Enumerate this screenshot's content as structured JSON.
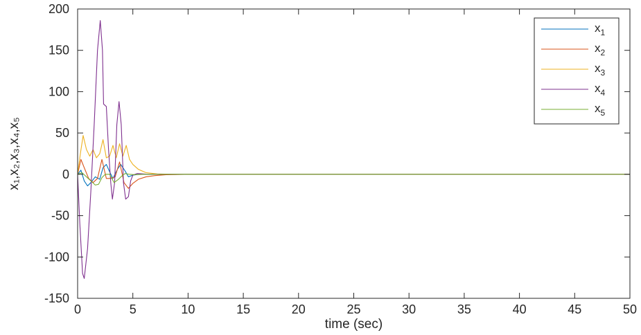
{
  "chart_data": {
    "type": "line",
    "title": "",
    "xlabel": "time (sec)",
    "ylabel": "x₁,x₂,x₃,x₄,x₅",
    "xlim": [
      0,
      50
    ],
    "ylim": [
      -150,
      200
    ],
    "xticks": [
      0,
      5,
      10,
      15,
      20,
      25,
      30,
      35,
      40,
      45,
      50
    ],
    "yticks": [
      -150,
      -100,
      -50,
      0,
      50,
      100,
      150,
      200
    ],
    "grid": false,
    "legend_position": "top-right",
    "series": [
      {
        "name": "x1",
        "base": "x",
        "sub": "1",
        "color": "#0072BD",
        "points": [
          [
            0,
            0
          ],
          [
            0.3,
            5
          ],
          [
            0.6,
            -8
          ],
          [
            0.9,
            -14
          ],
          [
            1.2,
            -10
          ],
          [
            1.6,
            -3
          ],
          [
            2.0,
            -6
          ],
          [
            2.3,
            8
          ],
          [
            2.6,
            12
          ],
          [
            2.9,
            3
          ],
          [
            3.2,
            -5
          ],
          [
            3.6,
            6
          ],
          [
            3.9,
            12
          ],
          [
            4.3,
            4
          ],
          [
            4.6,
            -3
          ],
          [
            5.0,
            -1
          ],
          [
            5.6,
            0
          ],
          [
            6.5,
            0
          ],
          [
            8,
            0
          ],
          [
            50,
            0
          ]
        ]
      },
      {
        "name": "x2",
        "base": "x",
        "sub": "2",
        "color": "#D95319",
        "points": [
          [
            0,
            0
          ],
          [
            0.3,
            18
          ],
          [
            0.6,
            8
          ],
          [
            1.0,
            -5
          ],
          [
            1.4,
            -10
          ],
          [
            1.8,
            -5
          ],
          [
            2.2,
            18
          ],
          [
            2.6,
            -5
          ],
          [
            3.0,
            -5
          ],
          [
            3.4,
            -3
          ],
          [
            3.8,
            15
          ],
          [
            4.2,
            -10
          ],
          [
            4.6,
            -17
          ],
          [
            5.0,
            -11
          ],
          [
            5.5,
            -6
          ],
          [
            6.2,
            -3
          ],
          [
            7.0,
            -1.5
          ],
          [
            8,
            -0.5
          ],
          [
            10,
            0
          ],
          [
            50,
            0
          ]
        ]
      },
      {
        "name": "x3",
        "base": "x",
        "sub": "3",
        "color": "#EDB120",
        "points": [
          [
            0,
            0
          ],
          [
            0.25,
            25
          ],
          [
            0.5,
            47
          ],
          [
            0.8,
            30
          ],
          [
            1.1,
            22
          ],
          [
            1.4,
            30
          ],
          [
            1.7,
            20
          ],
          [
            2.0,
            25
          ],
          [
            2.3,
            42
          ],
          [
            2.6,
            20
          ],
          [
            2.9,
            22
          ],
          [
            3.2,
            35
          ],
          [
            3.5,
            20
          ],
          [
            3.8,
            37
          ],
          [
            4.1,
            22
          ],
          [
            4.4,
            35
          ],
          [
            4.7,
            18
          ],
          [
            5.0,
            12
          ],
          [
            5.5,
            6
          ],
          [
            6.2,
            2
          ],
          [
            7.2,
            0.5
          ],
          [
            8.5,
            0
          ],
          [
            50,
            0
          ]
        ]
      },
      {
        "name": "x4",
        "base": "x",
        "sub": "4",
        "color": "#7E2F8E",
        "points": [
          [
            0,
            0
          ],
          [
            0.2,
            -60
          ],
          [
            0.45,
            -120
          ],
          [
            0.6,
            -126
          ],
          [
            0.9,
            -90
          ],
          [
            1.2,
            -20
          ],
          [
            1.5,
            60
          ],
          [
            1.8,
            150
          ],
          [
            2.05,
            186
          ],
          [
            2.25,
            150
          ],
          [
            2.35,
            85
          ],
          [
            2.6,
            82
          ],
          [
            2.8,
            30
          ],
          [
            3.0,
            -10
          ],
          [
            3.15,
            -30
          ],
          [
            3.35,
            -10
          ],
          [
            3.55,
            60
          ],
          [
            3.75,
            88
          ],
          [
            3.95,
            60
          ],
          [
            4.15,
            -10
          ],
          [
            4.35,
            -30
          ],
          [
            4.6,
            -27
          ],
          [
            4.8,
            -8
          ],
          [
            5.0,
            -1
          ],
          [
            5.4,
            1
          ],
          [
            6.2,
            0.3
          ],
          [
            8,
            0
          ],
          [
            50,
            0
          ]
        ]
      },
      {
        "name": "x5",
        "base": "x",
        "sub": "5",
        "color": "#77AC30",
        "points": [
          [
            0,
            0
          ],
          [
            0.4,
            2
          ],
          [
            0.8,
            -3
          ],
          [
            1.2,
            -8
          ],
          [
            1.6,
            -13
          ],
          [
            1.9,
            -12
          ],
          [
            2.2,
            -4
          ],
          [
            2.5,
            0
          ],
          [
            2.9,
            0
          ],
          [
            3.3,
            -10
          ],
          [
            3.7,
            -6
          ],
          [
            4.0,
            -2
          ],
          [
            4.3,
            1
          ],
          [
            4.7,
            0
          ],
          [
            5.2,
            -0.5
          ],
          [
            6,
            0
          ],
          [
            50,
            0
          ]
        ]
      }
    ]
  }
}
